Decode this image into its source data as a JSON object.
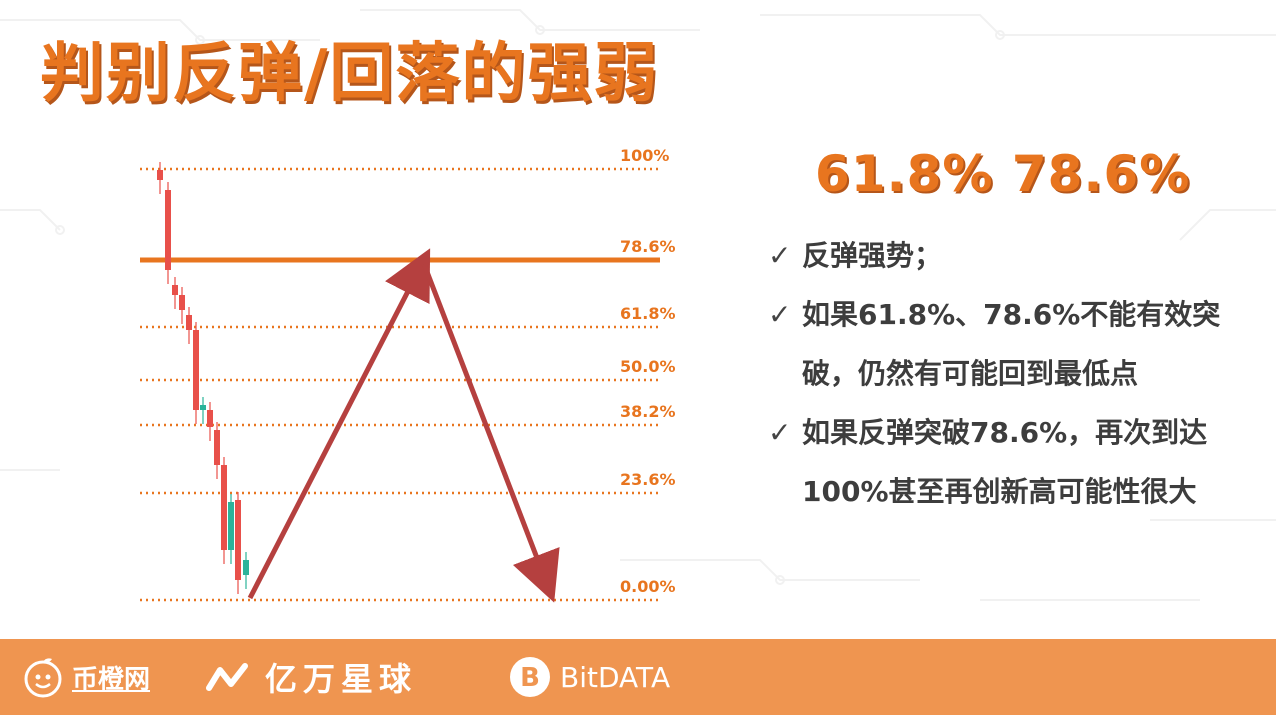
{
  "title": "判别反弹/回落的强弱",
  "highlight_levels": "61.8% 78.6%",
  "levels": [
    {
      "label": "100%",
      "value": 1.0
    },
    {
      "label": "78.6%",
      "value": 0.786
    },
    {
      "label": "61.8%",
      "value": 0.618
    },
    {
      "label": "50.0%",
      "value": 0.5
    },
    {
      "label": "38.2%",
      "value": 0.382
    },
    {
      "label": "23.6%",
      "value": 0.236
    },
    {
      "label": "0.00%",
      "value": 0.0
    }
  ],
  "notes": [
    {
      "check": "✓",
      "text": "反弹强势；"
    },
    {
      "check": "✓",
      "text": "如果61.8%、78.6%不能有效突破，仍然有可能回到最低点"
    },
    {
      "check": "✓",
      "text": "如果反弹突破78.6%，再次到达100%甚至再创新高可能性很大"
    }
  ],
  "footer": {
    "logo1": "币橙网",
    "logo2": "亿万星球",
    "logo3": "BitDATA"
  },
  "colors": {
    "accent": "#e8751f",
    "arrow": "#b5403f",
    "candle_down": "#e8504a",
    "candle_up": "#2bb39a",
    "footer_bg": "#ef9550"
  }
}
